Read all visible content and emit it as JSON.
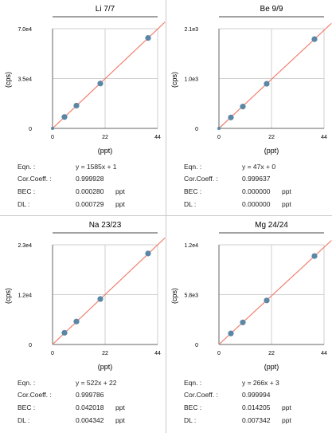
{
  "colors": {
    "fit_line": "#f08070",
    "marker": "#5b87a7",
    "grid": "#cfcfcf",
    "axis": "#666666",
    "title_bar": "#444444"
  },
  "panels": [
    {
      "title": "Li 7/7",
      "ylabel": "(cps)",
      "xlabel": "(ppt)",
      "eqn_label": "Eqn. :",
      "eqn": "y = 1585x + 1",
      "cor_label": "Cor.Coeff. :",
      "cor": "0.999928",
      "bec_label": "BEC :",
      "bec": "0.000280",
      "bec_unit": "ppt",
      "dl_label": "DL :",
      "dl": "0.000729",
      "dl_unit": "ppt"
    },
    {
      "title": "Be 9/9",
      "ylabel": "(cps)",
      "xlabel": "(ppt)",
      "eqn_label": "Eqn. :",
      "eqn": "y = 47x + 0",
      "cor_label": "Cor.Coeff. :",
      "cor": "0.999637",
      "bec_label": "BEC :",
      "bec": "0.000000",
      "bec_unit": "ppt",
      "dl_label": "DL :",
      "dl": "0.000000",
      "dl_unit": "ppt"
    },
    {
      "title": "Na 23/23",
      "ylabel": "(cps)",
      "xlabel": "(ppt)",
      "eqn_label": "Eqn. :",
      "eqn": "y = 522x + 22",
      "cor_label": "Cor.Coeff. :",
      "cor": "0.999786",
      "bec_label": "BEC :",
      "bec": "0.042018",
      "bec_unit": "ppt",
      "dl_label": "DL :",
      "dl": "0.004342",
      "dl_unit": "ppt"
    },
    {
      "title": "Mg 24/24",
      "ylabel": "(cps)",
      "xlabel": "(ppt)",
      "eqn_label": "Eqn. :",
      "eqn": "y = 266x + 3",
      "cor_label": "Cor.Coeff. :",
      "cor": "0.999994",
      "bec_label": "BEC :",
      "bec": "0.014205",
      "bec_unit": "ppt",
      "dl_label": "DL :",
      "dl": "0.007342",
      "dl_unit": "ppt"
    }
  ],
  "chart_data": [
    {
      "type": "scatter",
      "title": "Li 7/7",
      "xlabel": "(ppt)",
      "ylabel": "(cps)",
      "xlim": [
        0,
        44
      ],
      "ylim": [
        0,
        70000
      ],
      "xticks": [
        "0",
        "22",
        "44"
      ],
      "yticks": [
        "0",
        "3.5e4",
        "7.0e4"
      ],
      "grid": true,
      "fit": {
        "slope": 1585,
        "intercept": 1
      },
      "x": [
        0,
        5,
        10,
        20,
        40
      ],
      "y": [
        0,
        8000,
        16000,
        31500,
        63500
      ]
    },
    {
      "type": "scatter",
      "title": "Be 9/9",
      "xlabel": "(ppt)",
      "ylabel": "(cps)",
      "xlim": [
        0,
        44
      ],
      "ylim": [
        0,
        2100
      ],
      "xticks": [
        "0",
        "22",
        "44"
      ],
      "yticks": [
        "0",
        "1.0e3",
        "2.1e3"
      ],
      "grid": true,
      "fit": {
        "slope": 47,
        "intercept": 0
      },
      "x": [
        0,
        5,
        10,
        20,
        40
      ],
      "y": [
        0,
        230,
        460,
        940,
        1880
      ]
    },
    {
      "type": "scatter",
      "title": "Na 23/23",
      "xlabel": "(ppt)",
      "ylabel": "(cps)",
      "xlim": [
        0,
        44
      ],
      "ylim": [
        0,
        23000
      ],
      "xticks": [
        "0",
        "22",
        "44"
      ],
      "yticks": [
        "0",
        "1.2e4",
        "2.3e4"
      ],
      "grid": true,
      "fit": {
        "slope": 522,
        "intercept": 22
      },
      "x": [
        5,
        10,
        20,
        40
      ],
      "y": [
        2700,
        5300,
        10500,
        21000
      ]
    },
    {
      "type": "scatter",
      "title": "Mg 24/24",
      "xlabel": "(ppt)",
      "ylabel": "(cps)",
      "xlim": [
        0,
        44
      ],
      "ylim": [
        0,
        12000
      ],
      "xticks": [
        "0",
        "22",
        "44"
      ],
      "yticks": [
        "0",
        "5.8e3",
        "1.2e4"
      ],
      "grid": true,
      "fit": {
        "slope": 266,
        "intercept": 3
      },
      "x": [
        5,
        10,
        20,
        40
      ],
      "y": [
        1330,
        2660,
        5300,
        10650
      ]
    }
  ]
}
